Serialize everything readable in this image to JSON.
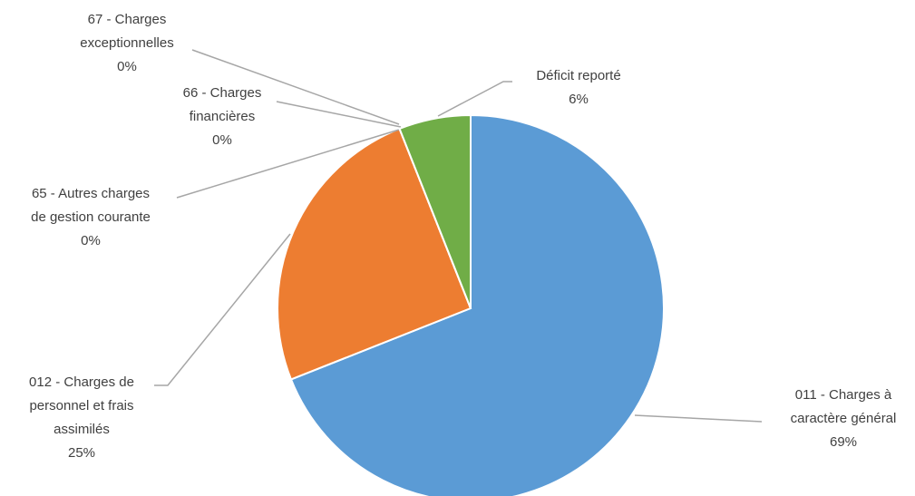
{
  "chart_data": {
    "type": "pie",
    "categories": [
      "011 - Charges à caractère général",
      "012 - Charges de personnel et frais assimilés",
      "65 - Autres charges de gestion courante",
      "66 - Charges financières",
      "67 - Charges exceptionnelles",
      "Déficit reporté"
    ],
    "values": [
      69,
      25,
      0,
      0,
      0,
      6
    ],
    "value_labels": [
      "69%",
      "25%",
      "0%",
      "0%",
      "0%",
      "6%"
    ],
    "colors": [
      "#5b9bd5",
      "#ed7d31",
      "#a5a5a5",
      "#ffc000",
      "#4472c4",
      "#70ad47"
    ]
  }
}
